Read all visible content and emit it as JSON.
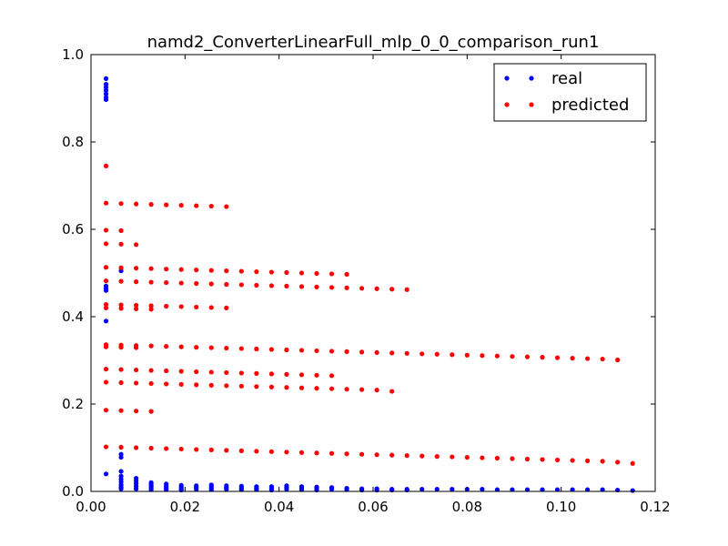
{
  "chart_data": {
    "type": "scatter",
    "title": "namd2_ConverterLinearFull_mlp_0_0_comparison_run1",
    "xlabel": "",
    "ylabel": "",
    "xlim": [
      0.0,
      0.12
    ],
    "ylim": [
      0.0,
      1.0
    ],
    "xticks": [
      "0.00",
      "0.02",
      "0.04",
      "0.06",
      "0.08",
      "0.10",
      "0.12"
    ],
    "yticks": [
      "0.0",
      "0.2",
      "0.4",
      "0.6",
      "0.8",
      "1.0"
    ],
    "legend_position": "top-right",
    "grid": false,
    "series": [
      {
        "name": "real",
        "color": "#0000ff",
        "points": [
          [
            0.0032,
            0.945
          ],
          [
            0.0032,
            0.932
          ],
          [
            0.0032,
            0.925
          ],
          [
            0.0032,
            0.918
          ],
          [
            0.0032,
            0.91
          ],
          [
            0.0032,
            0.902
          ],
          [
            0.0032,
            0.897
          ],
          [
            0.0032,
            0.47
          ],
          [
            0.0032,
            0.465
          ],
          [
            0.0032,
            0.46
          ],
          [
            0.0032,
            0.39
          ],
          [
            0.0032,
            0.04
          ],
          [
            0.0064,
            0.505
          ],
          [
            0.0064,
            0.085
          ],
          [
            0.0064,
            0.078
          ],
          [
            0.0064,
            0.046
          ],
          [
            0.0064,
            0.035
          ],
          [
            0.0064,
            0.028
          ],
          [
            0.0064,
            0.022
          ],
          [
            0.0064,
            0.015
          ],
          [
            0.0064,
            0.01
          ],
          [
            0.0064,
            0.006
          ],
          [
            0.0096,
            0.03
          ],
          [
            0.0096,
            0.024
          ],
          [
            0.0096,
            0.018
          ],
          [
            0.0096,
            0.012
          ],
          [
            0.0096,
            0.006
          ],
          [
            0.0128,
            0.02
          ],
          [
            0.0128,
            0.016
          ],
          [
            0.0128,
            0.012
          ],
          [
            0.0128,
            0.008
          ],
          [
            0.0128,
            0.004
          ],
          [
            0.016,
            0.017
          ],
          [
            0.016,
            0.012
          ],
          [
            0.016,
            0.008
          ],
          [
            0.016,
            0.004
          ],
          [
            0.0192,
            0.014
          ],
          [
            0.0192,
            0.01
          ],
          [
            0.0192,
            0.006
          ],
          [
            0.0192,
            0.003
          ],
          [
            0.0224,
            0.013
          ],
          [
            0.0224,
            0.009
          ],
          [
            0.0224,
            0.005
          ],
          [
            0.0256,
            0.015
          ],
          [
            0.0256,
            0.011
          ],
          [
            0.0256,
            0.007
          ],
          [
            0.0256,
            0.004
          ],
          [
            0.0288,
            0.013
          ],
          [
            0.0288,
            0.009
          ],
          [
            0.0288,
            0.005
          ],
          [
            0.032,
            0.012
          ],
          [
            0.032,
            0.008
          ],
          [
            0.032,
            0.004
          ],
          [
            0.0352,
            0.011
          ],
          [
            0.0352,
            0.007
          ],
          [
            0.0352,
            0.004
          ],
          [
            0.0384,
            0.011
          ],
          [
            0.0384,
            0.007
          ],
          [
            0.0384,
            0.003
          ],
          [
            0.0416,
            0.013
          ],
          [
            0.0416,
            0.009
          ],
          [
            0.0416,
            0.005
          ],
          [
            0.0448,
            0.011
          ],
          [
            0.0448,
            0.007
          ],
          [
            0.0448,
            0.004
          ],
          [
            0.048,
            0.01
          ],
          [
            0.048,
            0.006
          ],
          [
            0.048,
            0.003
          ],
          [
            0.0512,
            0.009
          ],
          [
            0.0512,
            0.005
          ],
          [
            0.0544,
            0.007
          ],
          [
            0.0544,
            0.004
          ],
          [
            0.0576,
            0.006
          ],
          [
            0.0576,
            0.003
          ],
          [
            0.0608,
            0.006
          ],
          [
            0.0608,
            0.003
          ],
          [
            0.064,
            0.005
          ],
          [
            0.064,
            0.003
          ],
          [
            0.0672,
            0.005
          ],
          [
            0.0672,
            0.003
          ],
          [
            0.0704,
            0.005
          ],
          [
            0.0736,
            0.005
          ],
          [
            0.0768,
            0.005
          ],
          [
            0.08,
            0.005
          ],
          [
            0.0832,
            0.005
          ],
          [
            0.0864,
            0.004
          ],
          [
            0.0896,
            0.004
          ],
          [
            0.0928,
            0.004
          ],
          [
            0.096,
            0.004
          ],
          [
            0.0992,
            0.004
          ],
          [
            0.1024,
            0.004
          ],
          [
            0.1056,
            0.004
          ],
          [
            0.1088,
            0.004
          ],
          [
            0.112,
            0.003
          ],
          [
            0.1152,
            0.002
          ]
        ]
      },
      {
        "name": "predicted",
        "color": "#ff0000",
        "points": [
          [
            0.0032,
            0.745
          ],
          [
            0.0032,
            0.66
          ],
          [
            0.0064,
            0.659
          ],
          [
            0.0096,
            0.658
          ],
          [
            0.0128,
            0.657
          ],
          [
            0.016,
            0.656
          ],
          [
            0.0192,
            0.655
          ],
          [
            0.0224,
            0.654
          ],
          [
            0.0256,
            0.653
          ],
          [
            0.0288,
            0.652
          ],
          [
            0.0032,
            0.598
          ],
          [
            0.0064,
            0.597
          ],
          [
            0.0032,
            0.567
          ],
          [
            0.0064,
            0.566
          ],
          [
            0.0096,
            0.565
          ],
          [
            0.0032,
            0.513
          ],
          [
            0.0064,
            0.512
          ],
          [
            0.0096,
            0.511
          ],
          [
            0.0128,
            0.51
          ],
          [
            0.016,
            0.509
          ],
          [
            0.0192,
            0.508
          ],
          [
            0.0224,
            0.507
          ],
          [
            0.0256,
            0.506
          ],
          [
            0.0288,
            0.505
          ],
          [
            0.032,
            0.504
          ],
          [
            0.0352,
            0.503
          ],
          [
            0.0384,
            0.502
          ],
          [
            0.0416,
            0.501
          ],
          [
            0.0448,
            0.5
          ],
          [
            0.048,
            0.499
          ],
          [
            0.0512,
            0.498
          ],
          [
            0.0544,
            0.497
          ],
          [
            0.0032,
            0.482
          ],
          [
            0.0064,
            0.481
          ],
          [
            0.0096,
            0.48
          ],
          [
            0.0128,
            0.479
          ],
          [
            0.016,
            0.478
          ],
          [
            0.0192,
            0.477
          ],
          [
            0.0224,
            0.476
          ],
          [
            0.0256,
            0.475
          ],
          [
            0.0288,
            0.474
          ],
          [
            0.032,
            0.473
          ],
          [
            0.0352,
            0.472
          ],
          [
            0.0384,
            0.471
          ],
          [
            0.0416,
            0.47
          ],
          [
            0.0448,
            0.469
          ],
          [
            0.048,
            0.468
          ],
          [
            0.0512,
            0.467
          ],
          [
            0.0544,
            0.466
          ],
          [
            0.0576,
            0.465
          ],
          [
            0.0608,
            0.464
          ],
          [
            0.064,
            0.463
          ],
          [
            0.0672,
            0.462
          ],
          [
            0.0032,
            0.428
          ],
          [
            0.0064,
            0.427
          ],
          [
            0.0096,
            0.426
          ],
          [
            0.0128,
            0.425
          ],
          [
            0.016,
            0.424
          ],
          [
            0.0192,
            0.423
          ],
          [
            0.0224,
            0.422
          ],
          [
            0.0256,
            0.421
          ],
          [
            0.0288,
            0.42
          ],
          [
            0.0032,
            0.42
          ],
          [
            0.0064,
            0.419
          ],
          [
            0.0096,
            0.418
          ],
          [
            0.0128,
            0.417
          ],
          [
            0.0032,
            0.336
          ],
          [
            0.0064,
            0.335
          ],
          [
            0.0096,
            0.334
          ],
          [
            0.0128,
            0.333
          ],
          [
            0.016,
            0.332
          ],
          [
            0.0192,
            0.331
          ],
          [
            0.0224,
            0.33
          ],
          [
            0.0256,
            0.329
          ],
          [
            0.0288,
            0.328
          ],
          [
            0.032,
            0.327
          ],
          [
            0.0352,
            0.326
          ],
          [
            0.0384,
            0.325
          ],
          [
            0.0416,
            0.324
          ],
          [
            0.0448,
            0.323
          ],
          [
            0.048,
            0.322
          ],
          [
            0.0512,
            0.321
          ],
          [
            0.0544,
            0.32
          ],
          [
            0.0576,
            0.319
          ],
          [
            0.0608,
            0.318
          ],
          [
            0.064,
            0.317
          ],
          [
            0.0672,
            0.316
          ],
          [
            0.0704,
            0.315
          ],
          [
            0.0736,
            0.314
          ],
          [
            0.0768,
            0.313
          ],
          [
            0.08,
            0.312
          ],
          [
            0.0832,
            0.311
          ],
          [
            0.0864,
            0.31
          ],
          [
            0.0896,
            0.309
          ],
          [
            0.0928,
            0.308
          ],
          [
            0.096,
            0.307
          ],
          [
            0.0992,
            0.306
          ],
          [
            0.1024,
            0.305
          ],
          [
            0.1056,
            0.304
          ],
          [
            0.1088,
            0.303
          ],
          [
            0.112,
            0.301
          ],
          [
            0.0032,
            0.331
          ],
          [
            0.0064,
            0.33
          ],
          [
            0.0096,
            0.329
          ],
          [
            0.0032,
            0.28
          ],
          [
            0.0064,
            0.279
          ],
          [
            0.0096,
            0.278
          ],
          [
            0.0128,
            0.277
          ],
          [
            0.016,
            0.276
          ],
          [
            0.0192,
            0.275
          ],
          [
            0.0224,
            0.274
          ],
          [
            0.0256,
            0.273
          ],
          [
            0.0288,
            0.272
          ],
          [
            0.032,
            0.271
          ],
          [
            0.0352,
            0.27
          ],
          [
            0.0384,
            0.269
          ],
          [
            0.0416,
            0.268
          ],
          [
            0.0448,
            0.267
          ],
          [
            0.048,
            0.266
          ],
          [
            0.0512,
            0.265
          ],
          [
            0.0032,
            0.25
          ],
          [
            0.0064,
            0.249
          ],
          [
            0.0096,
            0.248
          ],
          [
            0.0128,
            0.247
          ],
          [
            0.016,
            0.246
          ],
          [
            0.0192,
            0.245
          ],
          [
            0.0224,
            0.244
          ],
          [
            0.0256,
            0.243
          ],
          [
            0.0288,
            0.242
          ],
          [
            0.032,
            0.241
          ],
          [
            0.0352,
            0.24
          ],
          [
            0.0384,
            0.239
          ],
          [
            0.0416,
            0.238
          ],
          [
            0.0448,
            0.237
          ],
          [
            0.048,
            0.236
          ],
          [
            0.0512,
            0.235
          ],
          [
            0.0544,
            0.234
          ],
          [
            0.0576,
            0.233
          ],
          [
            0.0608,
            0.232
          ],
          [
            0.064,
            0.229
          ],
          [
            0.0032,
            0.186
          ],
          [
            0.0064,
            0.185
          ],
          [
            0.0096,
            0.184
          ],
          [
            0.0128,
            0.183
          ],
          [
            0.0032,
            0.102
          ],
          [
            0.0064,
            0.101
          ],
          [
            0.0096,
            0.1
          ],
          [
            0.0128,
            0.099
          ],
          [
            0.016,
            0.098
          ],
          [
            0.0192,
            0.097
          ],
          [
            0.0224,
            0.096
          ],
          [
            0.0256,
            0.095
          ],
          [
            0.0288,
            0.094
          ],
          [
            0.032,
            0.093
          ],
          [
            0.0352,
            0.092
          ],
          [
            0.0384,
            0.091
          ],
          [
            0.0416,
            0.09
          ],
          [
            0.0448,
            0.089
          ],
          [
            0.048,
            0.088
          ],
          [
            0.0512,
            0.087
          ],
          [
            0.0544,
            0.086
          ],
          [
            0.0576,
            0.085
          ],
          [
            0.0608,
            0.084
          ],
          [
            0.064,
            0.083
          ],
          [
            0.0672,
            0.082
          ],
          [
            0.0704,
            0.081
          ],
          [
            0.0736,
            0.08
          ],
          [
            0.0768,
            0.079
          ],
          [
            0.08,
            0.078
          ],
          [
            0.0832,
            0.077
          ],
          [
            0.0864,
            0.076
          ],
          [
            0.0896,
            0.075
          ],
          [
            0.0928,
            0.074
          ],
          [
            0.096,
            0.073
          ],
          [
            0.0992,
            0.072
          ],
          [
            0.1024,
            0.071
          ],
          [
            0.1056,
            0.07
          ],
          [
            0.1088,
            0.069
          ],
          [
            0.112,
            0.067
          ],
          [
            0.1152,
            0.064
          ]
        ]
      }
    ]
  }
}
